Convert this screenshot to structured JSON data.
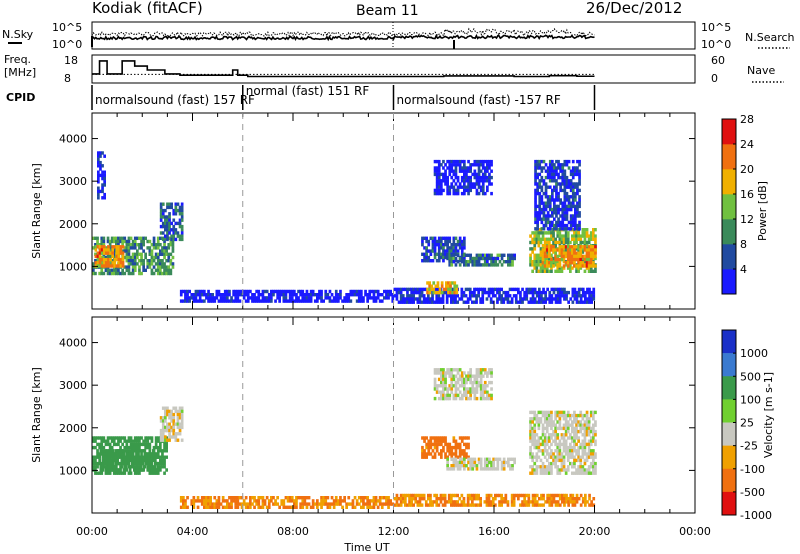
{
  "header": {
    "title": "Kodiak (fitACF)",
    "beam": "Beam 11",
    "date": "26/Dec/2012"
  },
  "nsky_panel": {
    "left_label": "N.Sky",
    "right_label": "N.Search",
    "left_ticks": [
      "10^5",
      "10^0"
    ],
    "right_ticks": [
      "10^5",
      "10^0"
    ]
  },
  "freq_panel": {
    "left_label_line1": "Freq.",
    "left_label_line2": "[MHz]",
    "left_ticks": [
      "18",
      "8"
    ],
    "right_label": "Nave",
    "right_ticks": [
      "60",
      "0"
    ],
    "freq_steps": [
      [
        0.0,
        11.5
      ],
      [
        0.3,
        16.5
      ],
      [
        0.6,
        11.5
      ],
      [
        1.2,
        16.5
      ],
      [
        1.7,
        14.5
      ],
      [
        2.2,
        13.0
      ],
      [
        2.9,
        11.5
      ],
      [
        3.5,
        11.0
      ],
      [
        5.6,
        13.0
      ],
      [
        5.8,
        11.0
      ],
      [
        6.2,
        10.5
      ],
      [
        12.0,
        10.5
      ],
      [
        13.0,
        10.5
      ],
      [
        14.0,
        10.7
      ],
      [
        16.8,
        10.5
      ],
      [
        18.2,
        10.8
      ],
      [
        19.3,
        10.6
      ],
      [
        20.0,
        10.6
      ]
    ],
    "nave_level": 20
  },
  "cpid": {
    "label": "CPID",
    "modes": [
      {
        "text": "normalsound (fast) 157 RF",
        "start_h": 0.0,
        "end_h": 6.0
      },
      {
        "text": "normal (fast) 151 RF",
        "start_h": 6.0,
        "end_h": 12.0
      },
      {
        "text": "normalsound (fast) -157 RF",
        "start_h": 12.0,
        "end_h": 20.0
      }
    ]
  },
  "chart_data": [
    {
      "type": "heatmap",
      "title": "Power",
      "xlabel": "Time UT",
      "ylabel": "Slant Range [km]",
      "x_ticks": [
        "00:00",
        "04:00",
        "08:00",
        "12:00",
        "16:00",
        "20:00",
        "00:00"
      ],
      "xlim_hours": [
        0,
        24
      ],
      "ylim_km": [
        0,
        4600
      ],
      "y_ticks": [
        1000,
        2000,
        3000,
        4000
      ],
      "colorbar_label": "Power [dB]",
      "colorbar_ticks": [
        4,
        8,
        12,
        16,
        20,
        24,
        28
      ],
      "colorbar_colors": [
        "#1a1aff",
        "#204aa0",
        "#3a8a5a",
        "#70c040",
        "#f0b000",
        "#f07010",
        "#e01010"
      ],
      "echo_regions": [
        {
          "t0": 0.0,
          "t1": 3.2,
          "r0": 850,
          "r1": 1700,
          "level": 14
        },
        {
          "t0": 0.1,
          "t1": 1.2,
          "r0": 1000,
          "r1": 1500,
          "level": 24
        },
        {
          "t0": 2.7,
          "t1": 3.6,
          "r0": 1600,
          "r1": 2500,
          "level": 11
        },
        {
          "t0": 0.2,
          "t1": 0.5,
          "r0": 2600,
          "r1": 3700,
          "level": 6
        },
        {
          "t0": 13.1,
          "t1": 14.8,
          "r0": 1150,
          "r1": 1700,
          "level": 9
        },
        {
          "t0": 14.1,
          "t1": 16.8,
          "r0": 1050,
          "r1": 1300,
          "level": 12
        },
        {
          "t0": 13.6,
          "t1": 15.9,
          "r0": 2700,
          "r1": 3500,
          "level": 6
        },
        {
          "t0": 17.4,
          "t1": 20.0,
          "r0": 900,
          "r1": 1900,
          "level": 18
        },
        {
          "t0": 17.9,
          "t1": 20.0,
          "r0": 1000,
          "r1": 1500,
          "level": 24
        },
        {
          "t0": 17.6,
          "t1": 19.4,
          "r0": 1900,
          "r1": 3500,
          "level": 8
        },
        {
          "t0": 12.0,
          "t1": 20.0,
          "r0": 150,
          "r1": 500,
          "level": 6
        },
        {
          "t0": 13.3,
          "t1": 14.5,
          "r0": 350,
          "r1": 650,
          "level": 22
        },
        {
          "t0": 3.5,
          "t1": 12.0,
          "r0": 150,
          "r1": 450,
          "level": 5
        }
      ]
    },
    {
      "type": "heatmap",
      "title": "Velocity",
      "xlabel": "Time UT",
      "ylabel": "Slant Range [km]",
      "x_ticks": [
        "00:00",
        "04:00",
        "08:00",
        "12:00",
        "16:00",
        "20:00",
        "00:00"
      ],
      "xlim_hours": [
        0,
        24
      ],
      "ylim_km": [
        0,
        4600
      ],
      "y_ticks": [
        1000,
        2000,
        3000,
        4000
      ],
      "colorbar_label": "Velocity [m s-1]",
      "colorbar_ticks": [
        1000,
        500,
        100,
        25,
        -25,
        -100,
        -500,
        -1000
      ],
      "colorbar_colors": [
        "#1a30c8",
        "#3a7ad0",
        "#3a9a4a",
        "#70d030",
        "#c8c8c0",
        "#f0a000",
        "#f07010",
        "#e01010"
      ],
      "echo_regions": [
        {
          "t0": 0.0,
          "t1": 3.0,
          "r0": 900,
          "r1": 1800,
          "level": 100
        },
        {
          "t0": 0.3,
          "t1": 2.6,
          "r0": 1000,
          "r1": 1500,
          "level": 150
        },
        {
          "t0": 2.7,
          "t1": 3.6,
          "r0": 1700,
          "r1": 2500,
          "level": 0
        },
        {
          "t0": 13.1,
          "t1": 15.0,
          "r0": 1300,
          "r1": 1800,
          "level": -90
        },
        {
          "t0": 14.1,
          "t1": 16.8,
          "r0": 1050,
          "r1": 1300,
          "level": 0
        },
        {
          "t0": 17.4,
          "t1": 20.0,
          "r0": 900,
          "r1": 2400,
          "level": 0
        },
        {
          "t0": 13.6,
          "t1": 15.9,
          "r0": 2700,
          "r1": 3400,
          "level": 0
        },
        {
          "t0": 12.0,
          "t1": 20.0,
          "r0": 150,
          "r1": 450,
          "level": -60
        },
        {
          "t0": 3.5,
          "t1": 12.0,
          "r0": 150,
          "r1": 400,
          "level": -60
        }
      ]
    }
  ]
}
